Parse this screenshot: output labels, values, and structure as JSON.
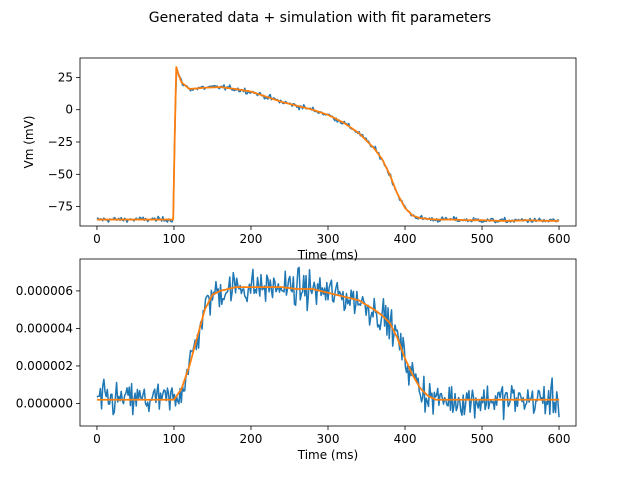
{
  "figure": {
    "suptitle": "Generated data + simulation with fit parameters"
  },
  "colors": {
    "data": "#1f77b4",
    "fit": "#ff7f0e",
    "axes": "#000000",
    "background": "#ffffff"
  },
  "chart_data": [
    {
      "type": "line",
      "title": "",
      "xlabel": "Time (ms)",
      "ylabel": "Vm (mV)",
      "xlim": [
        -22,
        622
      ],
      "ylim": [
        -90,
        40
      ],
      "xticks": [
        0,
        100,
        200,
        300,
        400,
        500,
        600
      ],
      "yticks": [
        -75,
        -50,
        -25,
        0,
        25
      ],
      "ytick_labels": [
        "−75",
        "−50",
        "−25",
        "0",
        "25"
      ],
      "grid": false,
      "noise_sigma": 1.0,
      "series": [
        {
          "role": "generated-data",
          "x": [
            0,
            99,
            101,
            103,
            106,
            110,
            120,
            140,
            160,
            180,
            200,
            220,
            240,
            260,
            280,
            300,
            320,
            340,
            360,
            370,
            380,
            390,
            400,
            410,
            420,
            440,
            460,
            480,
            500,
            520,
            540,
            560,
            580,
            600
          ],
          "values": [
            -85,
            -85,
            -20,
            33,
            27,
            21,
            16,
            17,
            17.5,
            16,
            14,
            10,
            6,
            3,
            0,
            -4,
            -10,
            -18,
            -30,
            -38,
            -50,
            -65,
            -76,
            -82,
            -84,
            -85,
            -85,
            -85.5,
            -85.5,
            -86,
            -86,
            -85.5,
            -86,
            -86
          ]
        },
        {
          "role": "fit-simulation",
          "x": [
            0,
            99,
            101,
            103,
            106,
            110,
            120,
            140,
            160,
            180,
            200,
            220,
            240,
            260,
            280,
            300,
            320,
            340,
            360,
            370,
            380,
            390,
            400,
            410,
            420,
            440,
            460,
            480,
            500,
            520,
            540,
            560,
            580,
            600
          ],
          "values": [
            -85,
            -85,
            -20,
            33,
            27,
            21,
            16,
            17,
            17.5,
            16,
            14,
            10,
            6,
            3,
            0,
            -4,
            -10,
            -18,
            -30,
            -38,
            -50,
            -65,
            -76,
            -82,
            -84,
            -85,
            -85,
            -85.5,
            -85.5,
            -86,
            -86,
            -85.5,
            -86,
            -86
          ]
        }
      ]
    },
    {
      "type": "line",
      "title": "",
      "xlabel": "Time (ms)",
      "ylabel": "",
      "xlim": [
        -22,
        622
      ],
      "ylim": [
        -1.2e-06,
        7.7e-06
      ],
      "xticks": [
        0,
        100,
        200,
        300,
        400,
        500,
        600
      ],
      "yticks": [
        0,
        2e-06,
        4e-06,
        6e-06
      ],
      "ytick_labels": [
        "0.000000",
        "0.000002",
        "0.000004",
        "0.000006"
      ],
      "grid": false,
      "noise_sigma": 4.5e-07,
      "series": [
        {
          "role": "generated-data",
          "x": [
            0,
            100,
            110,
            120,
            130,
            140,
            150,
            160,
            180,
            200,
            220,
            240,
            260,
            280,
            300,
            320,
            340,
            360,
            370,
            380,
            390,
            400,
            410,
            420,
            430,
            440,
            460,
            480,
            500,
            520,
            540,
            560,
            580,
            600
          ],
          "values": [
            2e-07,
            2e-07,
            8e-07,
            2e-06,
            3.5e-06,
            5e-06,
            5.8e-06,
            6e-06,
            6.2e-06,
            6.2e-06,
            6.2e-06,
            6.2e-06,
            6.1e-06,
            6.1e-06,
            5.9e-06,
            5.7e-06,
            5.5e-06,
            5e-06,
            4.7e-06,
            4.3e-06,
            3.5e-06,
            2.4e-06,
            1.5e-06,
            8e-07,
            4e-07,
            2e-07,
            2e-07,
            2e-07,
            2e-07,
            2e-07,
            2e-07,
            2e-07,
            2e-07,
            2e-07
          ]
        },
        {
          "role": "fit-simulation",
          "x": [
            0,
            100,
            110,
            120,
            130,
            140,
            150,
            160,
            180,
            200,
            220,
            240,
            260,
            280,
            300,
            320,
            340,
            360,
            370,
            380,
            390,
            400,
            410,
            420,
            430,
            440,
            460,
            480,
            500,
            520,
            540,
            560,
            580,
            600
          ],
          "values": [
            2e-07,
            2e-07,
            8e-07,
            2e-06,
            3.5e-06,
            5e-06,
            5.8e-06,
            6e-06,
            6.2e-06,
            6.2e-06,
            6.2e-06,
            6.2e-06,
            6.1e-06,
            6.1e-06,
            5.9e-06,
            5.7e-06,
            5.5e-06,
            5e-06,
            4.7e-06,
            4.3e-06,
            3.5e-06,
            2.4e-06,
            1.5e-06,
            8e-07,
            4e-07,
            2e-07,
            2e-07,
            2e-07,
            2e-07,
            2e-07,
            2e-07,
            2e-07,
            2e-07,
            2e-07
          ]
        }
      ]
    }
  ]
}
